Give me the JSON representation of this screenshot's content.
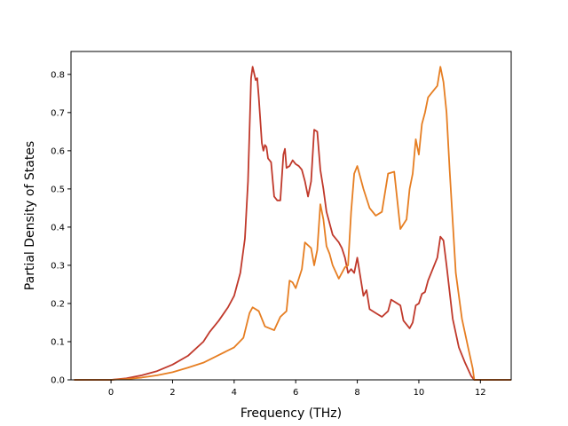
{
  "chart_data": {
    "type": "line",
    "title": "",
    "xlabel": "Frequency (THz)",
    "ylabel": "Partial Density of States",
    "xlim": [
      -1.3,
      13.0
    ],
    "ylim": [
      0.0,
      0.86
    ],
    "xticks": [
      0,
      2,
      4,
      6,
      8,
      10,
      12
    ],
    "yticks": [
      0.0,
      0.1,
      0.2,
      0.3,
      0.4,
      0.5,
      0.6,
      0.7,
      0.8
    ],
    "xtick_labels": [
      "0",
      "2",
      "4",
      "6",
      "8",
      "10",
      "12"
    ],
    "ytick_labels": [
      "0.0",
      "0.1",
      "0.2",
      "0.3",
      "0.4",
      "0.5",
      "0.6",
      "0.7",
      "0.8"
    ],
    "grid": false,
    "legend": "none",
    "series": [
      {
        "color": "#c0392b",
        "x": [
          -1.2,
          0.0,
          0.5,
          1.0,
          1.5,
          2.0,
          2.5,
          3.0,
          3.2,
          3.5,
          3.8,
          4.0,
          4.2,
          4.35,
          4.45,
          4.55,
          4.6,
          4.7,
          4.75,
          4.8,
          4.9,
          4.95,
          5.0,
          5.05,
          5.1,
          5.2,
          5.3,
          5.4,
          5.5,
          5.6,
          5.65,
          5.7,
          5.8,
          5.9,
          6.0,
          6.1,
          6.2,
          6.3,
          6.4,
          6.5,
          6.6,
          6.7,
          6.8,
          6.9,
          7.0,
          7.2,
          7.4,
          7.5,
          7.6,
          7.7,
          7.8,
          7.9,
          8.0,
          8.2,
          8.3,
          8.4,
          8.6,
          8.8,
          9.0,
          9.1,
          9.3,
          9.4,
          9.5,
          9.6,
          9.7,
          9.8,
          9.9,
          10.0,
          10.1,
          10.2,
          10.3,
          10.5,
          10.6,
          10.7,
          10.8,
          10.9,
          11.1,
          11.3,
          11.5,
          11.7,
          11.8,
          13.0
        ],
        "y": [
          0.0,
          0.0,
          0.004,
          0.012,
          0.023,
          0.04,
          0.063,
          0.1,
          0.125,
          0.155,
          0.19,
          0.22,
          0.28,
          0.37,
          0.52,
          0.79,
          0.82,
          0.785,
          0.79,
          0.74,
          0.62,
          0.6,
          0.615,
          0.61,
          0.58,
          0.57,
          0.48,
          0.47,
          0.47,
          0.59,
          0.605,
          0.555,
          0.56,
          0.575,
          0.565,
          0.56,
          0.55,
          0.52,
          0.48,
          0.52,
          0.655,
          0.65,
          0.55,
          0.5,
          0.44,
          0.38,
          0.36,
          0.345,
          0.32,
          0.28,
          0.29,
          0.28,
          0.32,
          0.22,
          0.235,
          0.185,
          0.175,
          0.165,
          0.18,
          0.21,
          0.2,
          0.195,
          0.155,
          0.145,
          0.135,
          0.15,
          0.195,
          0.2,
          0.225,
          0.23,
          0.26,
          0.3,
          0.32,
          0.375,
          0.365,
          0.3,
          0.16,
          0.085,
          0.045,
          0.01,
          0.0,
          0.0
        ]
      },
      {
        "color": "#e67e22",
        "x": [
          -1.2,
          0.0,
          0.5,
          1.0,
          1.5,
          2.0,
          2.5,
          3.0,
          3.5,
          4.0,
          4.3,
          4.5,
          4.6,
          4.8,
          5.0,
          5.3,
          5.5,
          5.7,
          5.8,
          5.9,
          6.0,
          6.2,
          6.3,
          6.5,
          6.6,
          6.7,
          6.8,
          6.9,
          7.0,
          7.1,
          7.2,
          7.4,
          7.6,
          7.7,
          7.8,
          7.9,
          8.0,
          8.2,
          8.4,
          8.6,
          8.8,
          9.0,
          9.2,
          9.4,
          9.6,
          9.7,
          9.8,
          9.9,
          10.0,
          10.1,
          10.2,
          10.3,
          10.4,
          10.6,
          10.7,
          10.8,
          10.9,
          11.0,
          11.2,
          11.4,
          11.6,
          11.75,
          11.8,
          13.0
        ],
        "y": [
          0.0,
          0.0,
          0.002,
          0.006,
          0.012,
          0.02,
          0.032,
          0.045,
          0.065,
          0.085,
          0.11,
          0.175,
          0.19,
          0.18,
          0.14,
          0.13,
          0.165,
          0.18,
          0.26,
          0.255,
          0.24,
          0.29,
          0.36,
          0.345,
          0.3,
          0.34,
          0.46,
          0.42,
          0.35,
          0.33,
          0.3,
          0.265,
          0.295,
          0.3,
          0.44,
          0.54,
          0.56,
          0.5,
          0.45,
          0.43,
          0.44,
          0.54,
          0.545,
          0.395,
          0.42,
          0.5,
          0.54,
          0.63,
          0.59,
          0.67,
          0.7,
          0.74,
          0.75,
          0.77,
          0.82,
          0.78,
          0.7,
          0.55,
          0.28,
          0.16,
          0.085,
          0.03,
          0.0,
          0.0
        ]
      }
    ]
  }
}
